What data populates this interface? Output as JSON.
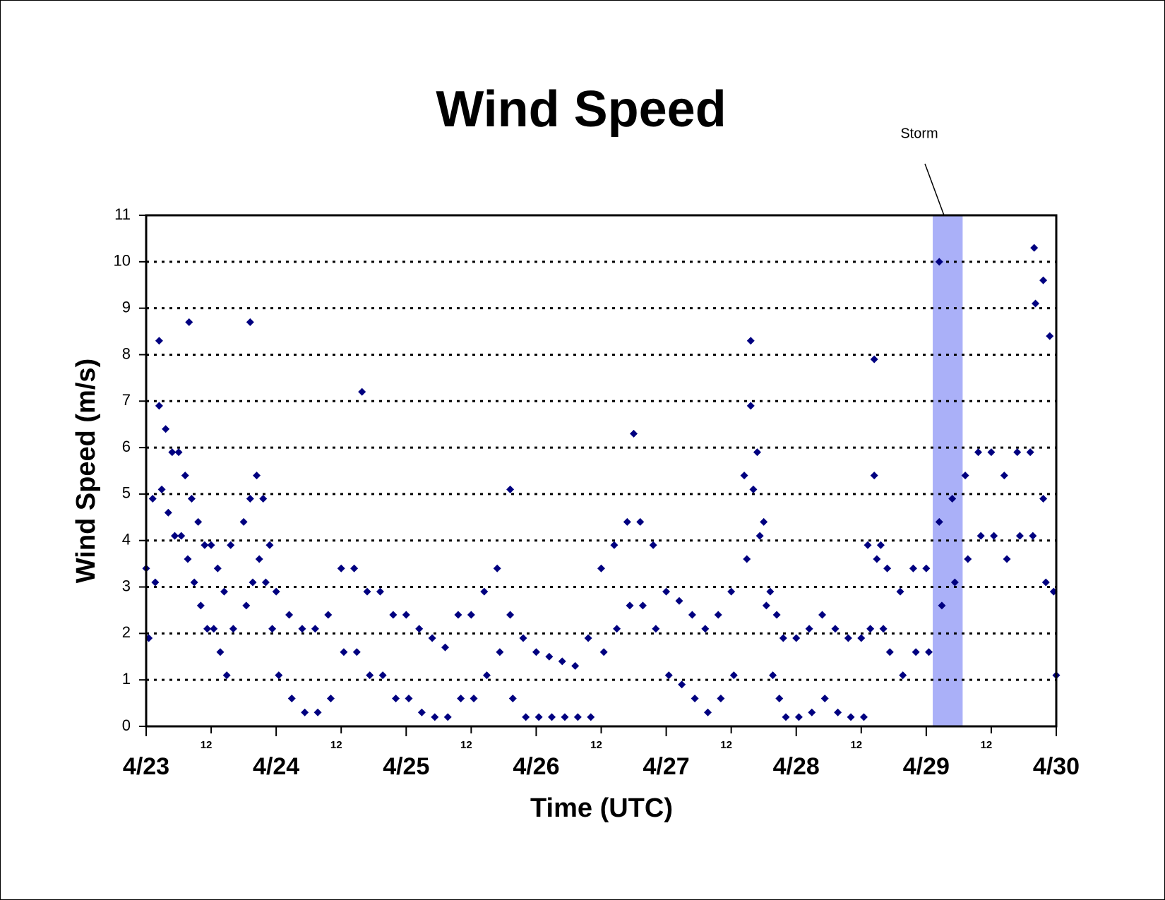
{
  "chart_data": {
    "type": "scatter",
    "title": "Wind Speed",
    "x_label": "Time (UTC)",
    "y_label": "Wind Speed (m/s)",
    "color": "#000080",
    "grid": true,
    "annotation": {
      "text": "Storm",
      "band": [
        6.05,
        6.28
      ],
      "band_color": "#aab0f8"
    },
    "xlim": [
      0,
      7
    ],
    "ylim": [
      0,
      11
    ],
    "yticks": [
      0,
      1,
      2,
      3,
      4,
      5,
      6,
      7,
      8,
      9,
      10,
      11
    ],
    "xticks": [
      {
        "value": 0,
        "label": "4/23"
      },
      {
        "value": 1,
        "label": "4/24"
      },
      {
        "value": 2,
        "label": "4/25"
      },
      {
        "value": 3,
        "label": "4/26"
      },
      {
        "value": 4,
        "label": "4/27"
      },
      {
        "value": 5,
        "label": "4/28"
      },
      {
        "value": 6,
        "label": "4/29"
      },
      {
        "value": 7,
        "label": "4/30"
      }
    ],
    "xminorticks": [
      {
        "value": 0.5,
        "label": "12"
      },
      {
        "value": 1.5,
        "label": "12"
      },
      {
        "value": 2.5,
        "label": "12"
      },
      {
        "value": 3.5,
        "label": "12"
      },
      {
        "value": 4.5,
        "label": "12"
      },
      {
        "value": 5.5,
        "label": "12"
      },
      {
        "value": 6.5,
        "label": "12"
      }
    ],
    "x": [
      0.0,
      0.02,
      0.05,
      0.07,
      0.1,
      0.12,
      0.15,
      0.17,
      0.2,
      0.22,
      0.25,
      0.27,
      0.3,
      0.32,
      0.35,
      0.37,
      0.4,
      0.42,
      0.45,
      0.47,
      0.5,
      0.52,
      0.55,
      0.57,
      0.6,
      0.62,
      0.65,
      0.67,
      0.75,
      0.77,
      0.8,
      0.82,
      0.85,
      0.87,
      0.9,
      0.92,
      0.95,
      0.97,
      1.0,
      1.02,
      1.1,
      1.12,
      1.2,
      1.22,
      1.3,
      1.32,
      1.4,
      1.42,
      1.5,
      1.52,
      1.6,
      1.62,
      1.7,
      1.72,
      1.8,
      1.82,
      1.9,
      1.92,
      2.0,
      2.02,
      2.1,
      2.12,
      2.2,
      2.22,
      2.3,
      2.32,
      2.4,
      2.42,
      2.5,
      2.52,
      2.6,
      2.62,
      2.7,
      2.72,
      2.8,
      2.82,
      2.9,
      2.92,
      3.0,
      3.02,
      3.1,
      3.12,
      3.2,
      3.22,
      3.3,
      3.32,
      3.4,
      3.42,
      3.5,
      3.52,
      3.6,
      3.62,
      3.7,
      3.72,
      3.8,
      3.82,
      3.9,
      3.92,
      4.0,
      4.02,
      4.1,
      4.12,
      4.2,
      4.22,
      4.3,
      4.32,
      4.4,
      4.42,
      4.5,
      4.52,
      4.6,
      4.62,
      4.65,
      4.67,
      4.7,
      4.72,
      4.75,
      4.77,
      4.8,
      4.82,
      4.85,
      4.87,
      4.9,
      4.92,
      5.0,
      5.02,
      5.1,
      5.12,
      5.2,
      5.22,
      5.3,
      5.32,
      5.4,
      5.42,
      5.5,
      5.52,
      5.55,
      5.57,
      5.6,
      5.62,
      5.65,
      5.67,
      5.7,
      5.72,
      5.8,
      5.82,
      5.9,
      5.92,
      6.0,
      6.02,
      6.1,
      6.12,
      6.2,
      6.22,
      6.3,
      6.32,
      6.4,
      6.42,
      6.5,
      6.52,
      6.6,
      6.62,
      6.7,
      6.72,
      6.8,
      6.82,
      6.9,
      6.92,
      6.98,
      7.0,
      0.1,
      0.33,
      0.8,
      1.66,
      2.8,
      3.75,
      4.65,
      5.6,
      6.1,
      6.83,
      6.9,
      6.84,
      6.95
    ],
    "values": [
      3.4,
      1.9,
      4.9,
      3.1,
      6.9,
      5.1,
      6.4,
      4.6,
      5.9,
      4.1,
      5.9,
      4.1,
      5.4,
      3.6,
      4.9,
      3.1,
      4.4,
      2.6,
      3.9,
      2.1,
      3.9,
      2.1,
      3.4,
      1.6,
      2.9,
      1.1,
      3.9,
      2.1,
      4.4,
      2.6,
      4.9,
      3.1,
      5.4,
      3.6,
      4.9,
      3.1,
      3.9,
      2.1,
      2.9,
      1.1,
      2.4,
      0.6,
      2.1,
      0.3,
      2.1,
      0.3,
      2.4,
      0.6,
      3.4,
      1.6,
      3.4,
      1.6,
      2.9,
      1.1,
      2.9,
      1.1,
      2.4,
      0.6,
      2.4,
      0.6,
      2.1,
      0.3,
      1.9,
      0.2,
      1.7,
      0.2,
      2.4,
      0.6,
      2.4,
      0.6,
      2.9,
      1.1,
      3.4,
      1.6,
      2.4,
      0.6,
      1.9,
      0.2,
      1.6,
      0.2,
      1.5,
      0.2,
      1.4,
      0.2,
      1.3,
      0.2,
      1.9,
      0.2,
      3.4,
      1.6,
      3.9,
      2.1,
      4.4,
      2.6,
      4.4,
      2.6,
      3.9,
      2.1,
      2.9,
      1.1,
      2.7,
      0.9,
      2.4,
      0.6,
      2.1,
      0.3,
      2.4,
      0.6,
      2.9,
      1.1,
      5.4,
      3.6,
      6.9,
      5.1,
      5.9,
      4.1,
      4.4,
      2.6,
      2.9,
      1.1,
      2.4,
      0.6,
      1.9,
      0.2,
      1.9,
      0.2,
      2.1,
      0.3,
      2.4,
      0.6,
      2.1,
      0.3,
      1.9,
      0.2,
      1.9,
      0.2,
      3.9,
      2.1,
      5.4,
      3.6,
      3.9,
      2.1,
      3.4,
      1.6,
      2.9,
      1.1,
      3.4,
      1.6,
      3.4,
      1.6,
      4.4,
      2.6,
      4.9,
      3.1,
      5.4,
      3.6,
      5.9,
      4.1,
      5.9,
      4.1,
      5.4,
      3.6,
      5.9,
      4.1,
      5.9,
      4.1,
      4.9,
      3.1,
      2.9,
      1.1,
      8.3,
      8.7,
      8.7,
      7.2,
      5.1,
      6.3,
      8.3,
      7.9,
      10,
      10.3,
      9.6,
      9.1,
      8.4
    ]
  }
}
